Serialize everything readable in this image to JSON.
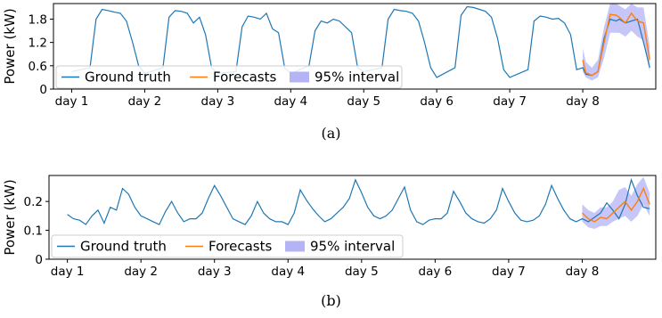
{
  "chart_data": [
    {
      "type": "line",
      "ylabel": "Power (kW)",
      "caption": "(a)",
      "ylim": [
        0,
        2.2
      ],
      "yticks": [
        "0",
        "0.6",
        "1.2",
        "1.8"
      ],
      "ytick_values": [
        0,
        0.6,
        1.2,
        1.8
      ],
      "xticks": [
        "day 1",
        "day 2",
        "day 3",
        "day 4",
        "day 5",
        "day 6",
        "day 7",
        "day 8"
      ],
      "x_unit": "hours",
      "legend": {
        "location": "lower left",
        "entries": [
          "Ground truth",
          "Forecasts",
          "95% interval"
        ]
      },
      "colors": {
        "ground_truth": "#1f77b4",
        "forecast": "#ff7f0e",
        "interval": "#b3b3f5"
      },
      "ground_truth": {
        "x": [
          0,
          6,
          8,
          10,
          12,
          14,
          16,
          18,
          20,
          22,
          24,
          30,
          32,
          34,
          36,
          38,
          40,
          42,
          44,
          46,
          48,
          54,
          56,
          58,
          60,
          62,
          64,
          66,
          68,
          70,
          72,
          78,
          80,
          82,
          84,
          86,
          88,
          90,
          92,
          94,
          96,
          102,
          104,
          106,
          108,
          110,
          112,
          114,
          116,
          118,
          120,
          126,
          128,
          130,
          132,
          134,
          136,
          138,
          140,
          142,
          144,
          150,
          152,
          154,
          156,
          158,
          160,
          162,
          164,
          166,
          168,
          169,
          171,
          173,
          175,
          177,
          179,
          180,
          182,
          184,
          186,
          188,
          190
        ],
        "y": [
          0.45,
          0.55,
          1.8,
          2.05,
          2.02,
          1.98,
          1.95,
          1.75,
          1.2,
          0.6,
          0.4,
          0.55,
          1.85,
          2.02,
          2.0,
          1.95,
          1.7,
          1.85,
          1.4,
          0.55,
          0.4,
          0.45,
          1.6,
          1.88,
          1.85,
          1.8,
          1.95,
          1.55,
          1.45,
          0.55,
          0.4,
          0.6,
          1.5,
          1.75,
          1.7,
          1.8,
          1.75,
          1.6,
          1.45,
          0.55,
          0.45,
          0.55,
          1.8,
          2.05,
          2.02,
          2.0,
          1.95,
          1.75,
          1.2,
          0.55,
          0.3,
          0.55,
          1.9,
          2.12,
          2.1,
          2.05,
          2.0,
          1.85,
          1.3,
          0.5,
          0.3,
          0.5,
          1.75,
          1.88,
          1.85,
          1.8,
          1.82,
          1.7,
          1.4,
          0.5,
          0.55,
          0.38,
          0.35,
          0.45,
          1.3,
          1.8,
          1.75,
          1.8,
          1.7,
          1.75,
          1.8,
          1.2,
          0.55
        ]
      },
      "forecast": {
        "x": [
          168,
          169,
          171,
          173,
          175,
          177,
          179,
          180,
          182,
          184,
          186,
          188,
          190
        ],
        "y": [
          0.75,
          0.42,
          0.35,
          0.45,
          1.2,
          1.92,
          1.9,
          1.85,
          1.7,
          1.95,
          1.75,
          1.7,
          0.75
        ]
      },
      "interval": {
        "x": [
          168,
          169,
          171,
          173,
          175,
          177,
          179,
          180,
          182,
          184,
          186,
          188,
          190
        ],
        "lower": [
          0.45,
          0.3,
          0.22,
          0.3,
          0.8,
          1.45,
          1.45,
          1.45,
          1.35,
          1.5,
          1.35,
          1.25,
          0.45
        ],
        "upper": [
          1.05,
          0.7,
          0.55,
          0.75,
          1.6,
          2.2,
          2.2,
          2.15,
          2.05,
          2.2,
          2.1,
          2.1,
          1.1
        ]
      }
    },
    {
      "type": "line",
      "ylabel": "Power (kW)",
      "caption": "(b)",
      "ylim": [
        0,
        0.29
      ],
      "yticks": [
        "0",
        "0.1",
        "0.2"
      ],
      "ytick_values": [
        0,
        0.1,
        0.2
      ],
      "xticks": [
        "day 1",
        "day 2",
        "day 3",
        "day 4",
        "day 5",
        "day 6",
        "day 7",
        "day 8"
      ],
      "x_unit": "hours",
      "legend": {
        "location": "lower left",
        "entries": [
          "Ground truth",
          "Forecasts",
          "95% interval"
        ]
      },
      "colors": {
        "ground_truth": "#1f77b4",
        "forecast": "#ff7f0e",
        "interval": "#b3b3f5"
      },
      "ground_truth": {
        "x": [
          0,
          2,
          4,
          6,
          8,
          10,
          12,
          14,
          16,
          18,
          20,
          22,
          24,
          26,
          28,
          30,
          32,
          34,
          36,
          38,
          40,
          42,
          44,
          46,
          48,
          50,
          52,
          54,
          56,
          58,
          60,
          62,
          64,
          66,
          68,
          70,
          72,
          74,
          76,
          78,
          80,
          82,
          84,
          86,
          88,
          90,
          92,
          94,
          96,
          98,
          100,
          102,
          104,
          106,
          108,
          110,
          112,
          114,
          116,
          118,
          120,
          122,
          124,
          126,
          128,
          130,
          132,
          134,
          136,
          138,
          140,
          142,
          144,
          146,
          148,
          150,
          152,
          154,
          156,
          158,
          160,
          162,
          164,
          166,
          168,
          170,
          172,
          174,
          176,
          178,
          180,
          182,
          184,
          186,
          188,
          190
        ],
        "y": [
          0.155,
          0.14,
          0.135,
          0.12,
          0.15,
          0.17,
          0.125,
          0.18,
          0.17,
          0.245,
          0.225,
          0.18,
          0.15,
          0.14,
          0.13,
          0.12,
          0.165,
          0.2,
          0.16,
          0.13,
          0.14,
          0.14,
          0.16,
          0.21,
          0.255,
          0.22,
          0.18,
          0.14,
          0.13,
          0.12,
          0.15,
          0.2,
          0.16,
          0.14,
          0.13,
          0.13,
          0.12,
          0.16,
          0.24,
          0.205,
          0.175,
          0.15,
          0.13,
          0.14,
          0.16,
          0.18,
          0.21,
          0.275,
          0.23,
          0.18,
          0.15,
          0.14,
          0.15,
          0.17,
          0.21,
          0.25,
          0.17,
          0.13,
          0.12,
          0.135,
          0.14,
          0.14,
          0.16,
          0.235,
          0.2,
          0.16,
          0.14,
          0.13,
          0.125,
          0.14,
          0.17,
          0.245,
          0.2,
          0.16,
          0.135,
          0.13,
          0.135,
          0.15,
          0.19,
          0.255,
          0.21,
          0.17,
          0.14,
          0.13,
          0.14,
          0.13,
          0.145,
          0.16,
          0.195,
          0.17,
          0.14,
          0.19,
          0.275,
          0.22,
          0.18,
          0.175
        ]
      },
      "forecast": {
        "x": [
          168,
          170,
          172,
          174,
          176,
          178,
          180,
          182,
          184,
          186,
          188,
          190
        ],
        "y": [
          0.16,
          0.14,
          0.13,
          0.145,
          0.14,
          0.16,
          0.18,
          0.2,
          0.17,
          0.2,
          0.245,
          0.19
        ],
        "note": ""
      },
      "interval": {
        "x": [
          168,
          170,
          172,
          174,
          176,
          178,
          180,
          182,
          184,
          186,
          188,
          190
        ],
        "lower": [
          0.13,
          0.11,
          0.105,
          0.115,
          0.115,
          0.13,
          0.14,
          0.15,
          0.13,
          0.15,
          0.19,
          0.15
        ],
        "upper": [
          0.19,
          0.17,
          0.16,
          0.18,
          0.18,
          0.2,
          0.24,
          0.25,
          0.22,
          0.26,
          0.285,
          0.23
        ]
      }
    }
  ]
}
